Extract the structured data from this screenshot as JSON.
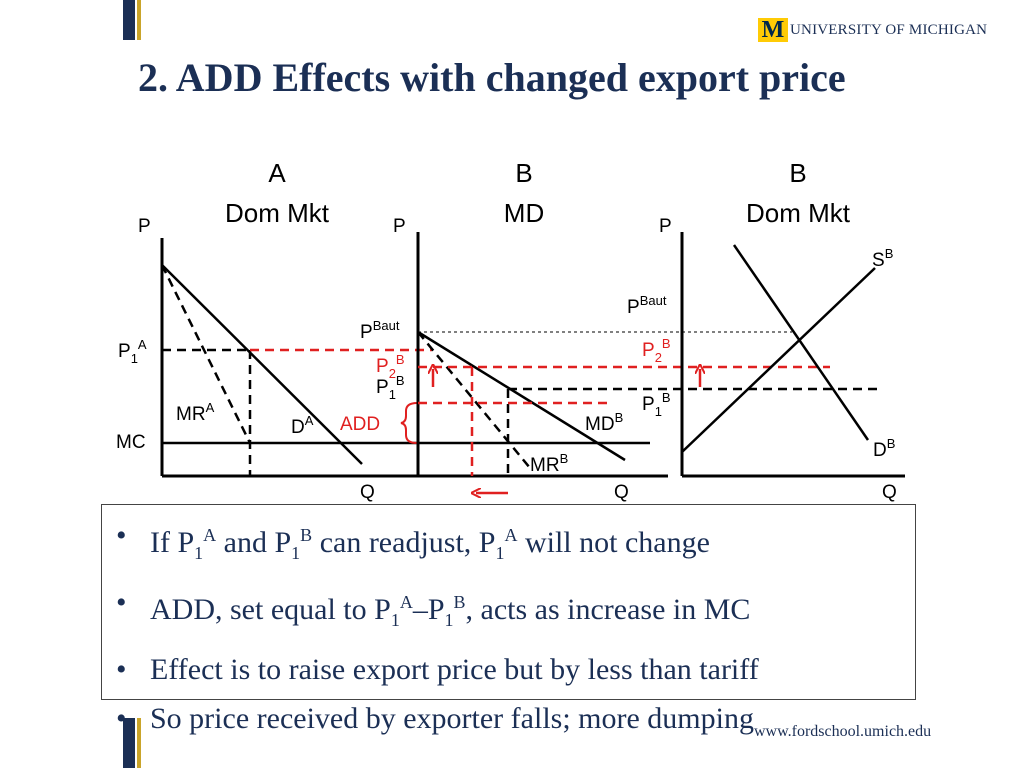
{
  "logo": {
    "m_letter": "M",
    "text": "UNIVERSITY OF MICHIGAN"
  },
  "title": "2.  ADD Effects with changed export price",
  "panels": {
    "a_dom": {
      "header_country": "A",
      "header_market": "Dom Mkt",
      "p_axis": "P",
      "q_axis": "Q",
      "p1_label": "P",
      "p1_sub": "1",
      "p1_sup": "A",
      "mr_label": "MR",
      "mr_sup": "A",
      "d_label": "D",
      "d_sup": "A",
      "mc_label": "MC",
      "add_label": "ADD"
    },
    "b_md": {
      "header_country": "B",
      "header_market": "MD",
      "p_axis": "P",
      "q_axis": "Q",
      "pbaut_label": "P",
      "pbaut_sup": "Baut",
      "p2_label": "P",
      "p2_sub": "2",
      "p2_sup": "B",
      "p1_label": "P",
      "p1_sub": "1",
      "p1_sup": "B",
      "md_label": "MD",
      "md_sup": "B",
      "mr_label": "MR",
      "mr_sup": "B"
    },
    "b_dom": {
      "header_country": "B",
      "header_market": "Dom Mkt",
      "p_axis": "P",
      "q_axis": "Q",
      "pbaut_label": "P",
      "pbaut_sup": "Baut",
      "p2_label": "P",
      "p2_sub": "2",
      "p2_sup": "B",
      "p1_label": "P",
      "p1_sub": "1",
      "p1_sup": "B",
      "s_label": "S",
      "s_sup": "B",
      "d_label": "D",
      "d_sup": "B"
    }
  },
  "bullets": [
    {
      "t1": "If P",
      "s1": "1",
      "p1": "A",
      "t2": " and P",
      "s2": "1",
      "p2": "B",
      "t3": " can readjust, P",
      "s3": "1",
      "p3": "A",
      "t4": " will not change"
    },
    {
      "t1": "ADD, set equal to P",
      "s1": "1",
      "p1": "A",
      "t2": "–P",
      "s2": "1",
      "p2": "B",
      "t3": ", acts as increase in MC"
    },
    {
      "t1": "Effect is to raise export price but by less than tariff"
    },
    {
      "t1": "So price received by exporter falls; more dumping"
    }
  ],
  "bullet_char": "•",
  "footer_url": "www.fordschool.umich.edu",
  "colors": {
    "navy": "#1b2f55",
    "gold": "#c9a42a",
    "red": "#e02020",
    "maize": "#ffcb05",
    "black": "#000000"
  }
}
